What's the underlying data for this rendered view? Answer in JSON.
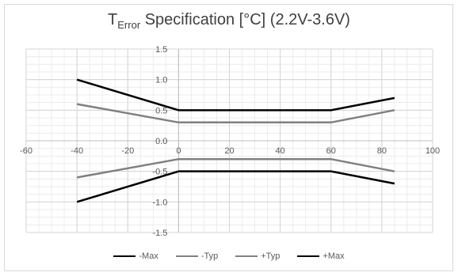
{
  "chart_data": {
    "type": "line",
    "title_main": "T",
    "title_sub": "Error",
    "title_rest": " Specification [°C] (2.2V-3.6V)",
    "xlim": [
      -60,
      100
    ],
    "ylim": [
      -1.5,
      1.5
    ],
    "x_ticks": [
      "-60",
      "-40",
      "-20",
      "0",
      "20",
      "40",
      "60",
      "80",
      "100"
    ],
    "x_tick_values": [
      -60,
      -40,
      -20,
      0,
      20,
      40,
      60,
      80,
      100
    ],
    "y_ticks": [
      "1.5",
      "1.0",
      "0.5",
      "0.0",
      "-0.5",
      "-1.0",
      "-1.5"
    ],
    "y_tick_values": [
      1.5,
      1.0,
      0.5,
      0.0,
      -0.5,
      -1.0,
      -1.5
    ],
    "grid": true,
    "legend_position": "bottom",
    "series": [
      {
        "name": "-Max",
        "color": "#000000",
        "x": [
          -40,
          0,
          60,
          85
        ],
        "y": [
          -1.0,
          -0.5,
          -0.5,
          -0.7
        ]
      },
      {
        "name": "-Typ",
        "color": "#808080",
        "x": [
          -40,
          0,
          60,
          85
        ],
        "y": [
          -0.6,
          -0.3,
          -0.3,
          -0.5
        ]
      },
      {
        "name": "+Typ",
        "color": "#808080",
        "x": [
          -40,
          0,
          60,
          85
        ],
        "y": [
          0.6,
          0.3,
          0.3,
          0.5
        ]
      },
      {
        "name": "+Max",
        "color": "#000000",
        "x": [
          -40,
          0,
          60,
          85
        ],
        "y": [
          1.0,
          0.5,
          0.5,
          0.7
        ]
      }
    ]
  }
}
